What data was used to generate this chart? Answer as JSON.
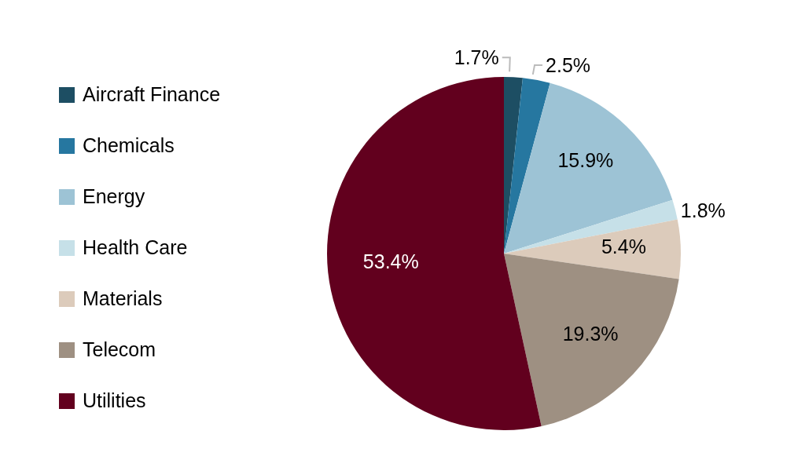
{
  "chart_data": {
    "type": "pie",
    "categories": [
      "Aircraft Finance",
      "Chemicals",
      "Energy",
      "Health Care",
      "Materials",
      "Telecom",
      "Utilities"
    ],
    "values": [
      1.7,
      2.5,
      15.9,
      1.8,
      5.4,
      19.3,
      53.4
    ],
    "colors": [
      "#1d4e63",
      "#2677a0",
      "#9dc3d5",
      "#c6e0e8",
      "#dccbbb",
      "#9e9082",
      "#62001e"
    ],
    "value_labels": [
      "1.7%",
      "2.5%",
      "15.9%",
      "1.8%",
      "5.4%",
      "19.3%",
      "53.4%"
    ],
    "legend": "left"
  }
}
